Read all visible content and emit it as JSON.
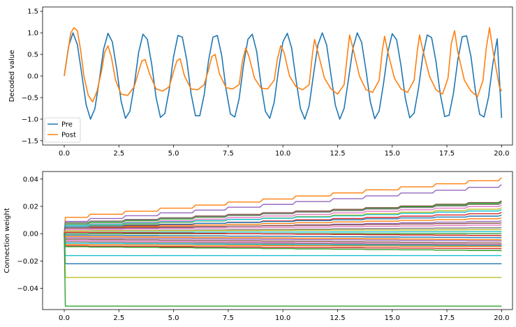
{
  "chart_data": [
    {
      "type": "line",
      "title": "",
      "xlabel": "",
      "ylabel": "Decoded value",
      "xlim": [
        -0.99,
        20.5
      ],
      "ylim": [
        -1.6,
        1.6
      ],
      "xticks": [
        0.0,
        2.5,
        5.0,
        7.5,
        10.0,
        12.5,
        15.0,
        17.5,
        20.0
      ],
      "xtick_labels": [
        "0.0",
        "2.5",
        "5.0",
        "7.5",
        "10.0",
        "12.5",
        "15.0",
        "17.5",
        "20.0"
      ],
      "yticks": [
        -1.5,
        -1.0,
        -0.5,
        0.0,
        0.5,
        1.0,
        1.5
      ],
      "ytick_labels": [
        "−1.5",
        "−1.0",
        "−0.5",
        "0.0",
        "0.5",
        "1.0",
        "1.5"
      ],
      "grid": false,
      "legend_position": "lower-left",
      "series": [
        {
          "name": "Pre",
          "color": "#1f77b4",
          "x": [
            0.0,
            0.2,
            0.4,
            0.6,
            0.8,
            1.0,
            1.2,
            1.4,
            1.6,
            1.8,
            2.0,
            2.2,
            2.4,
            2.6,
            2.8,
            3.0,
            3.2,
            3.4,
            3.6,
            3.8,
            4.0,
            4.2,
            4.4,
            4.6,
            4.8,
            5.0,
            5.2,
            5.4,
            5.6,
            5.8,
            6.0,
            6.2,
            6.4,
            6.6,
            6.8,
            7.0,
            7.2,
            7.4,
            7.6,
            7.8,
            8.0,
            8.2,
            8.4,
            8.6,
            8.8,
            9.0,
            9.2,
            9.4,
            9.6,
            9.8,
            10.0,
            10.2,
            10.4,
            10.6,
            10.8,
            11.0,
            11.2,
            11.4,
            11.6,
            11.8,
            12.0,
            12.2,
            12.4,
            12.6,
            12.8,
            13.0,
            13.2,
            13.4,
            13.6,
            13.8,
            14.0,
            14.2,
            14.4,
            14.6,
            14.8,
            15.0,
            15.2,
            15.4,
            15.6,
            15.8,
            16.0,
            16.2,
            16.4,
            16.6,
            16.8,
            17.0,
            17.2,
            17.4,
            17.6,
            17.8,
            18.0,
            18.2,
            18.4,
            18.6,
            18.8,
            19.0,
            19.2,
            19.4,
            19.6,
            19.8,
            20.0
          ],
          "y": [
            0.0,
            0.69,
            1.0,
            0.73,
            0.05,
            -0.66,
            -1.0,
            -0.76,
            -0.11,
            0.62,
            0.99,
            0.79,
            0.16,
            -0.58,
            -0.98,
            -0.82,
            -0.22,
            0.54,
            0.97,
            0.85,
            0.27,
            -0.5,
            -0.96,
            -0.87,
            -0.32,
            0.45,
            0.94,
            0.9,
            0.38,
            -0.41,
            -0.92,
            -0.92,
            -0.43,
            0.36,
            0.9,
            0.94,
            0.48,
            -0.31,
            -0.88,
            -0.95,
            -0.52,
            0.26,
            0.85,
            0.97,
            0.57,
            -0.2,
            -0.82,
            -0.98,
            -0.61,
            0.15,
            0.79,
            0.99,
            0.65,
            -0.09,
            -0.75,
            -1.0,
            -0.69,
            0.04,
            0.72,
            1.0,
            0.72,
            0.02,
            -0.68,
            -1.0,
            -0.75,
            -0.07,
            0.64,
            1.0,
            0.78,
            0.13,
            -0.6,
            -0.99,
            -0.81,
            -0.18,
            0.56,
            0.98,
            0.84,
            0.24,
            -0.52,
            -0.97,
            -0.86,
            -0.29,
            0.47,
            0.95,
            0.89,
            0.34,
            -0.43,
            -0.94,
            -0.91,
            -0.4,
            0.38,
            0.91,
            0.93,
            0.45,
            -0.33,
            -0.89,
            -0.95,
            -0.5,
            0.28,
            0.86,
            -0.97
          ]
        },
        {
          "name": "Post",
          "color": "#ff7f0e",
          "x": [
            0.0,
            0.15,
            0.3,
            0.45,
            0.6,
            0.75,
            0.9,
            1.1,
            1.3,
            1.5,
            1.7,
            1.85,
            2.0,
            2.15,
            2.35,
            2.6,
            2.9,
            3.2,
            3.4,
            3.55,
            3.7,
            3.9,
            4.2,
            4.5,
            4.8,
            5.0,
            5.15,
            5.3,
            5.5,
            5.8,
            6.1,
            6.4,
            6.6,
            6.75,
            6.9,
            7.1,
            7.4,
            7.7,
            8.0,
            8.15,
            8.3,
            8.45,
            8.7,
            9.0,
            9.3,
            9.6,
            9.75,
            9.9,
            10.05,
            10.3,
            10.6,
            10.9,
            11.2,
            11.35,
            11.45,
            11.6,
            11.9,
            12.2,
            12.5,
            12.8,
            12.95,
            13.05,
            13.2,
            13.5,
            13.8,
            14.1,
            14.4,
            14.55,
            14.65,
            14.8,
            15.1,
            15.4,
            15.7,
            16.0,
            16.15,
            16.25,
            16.4,
            16.7,
            17.0,
            17.3,
            17.55,
            17.7,
            17.85,
            18.0,
            18.3,
            18.6,
            18.9,
            19.15,
            19.3,
            19.45,
            19.6,
            19.9,
            20.0
          ],
          "y": [
            0.0,
            0.5,
            1.0,
            1.12,
            1.05,
            0.6,
            0.0,
            -0.45,
            -0.6,
            -0.35,
            0.1,
            0.55,
            0.7,
            0.45,
            -0.1,
            -0.42,
            -0.45,
            -0.25,
            0.1,
            0.35,
            0.38,
            0.05,
            -0.3,
            -0.35,
            -0.25,
            0.1,
            0.35,
            0.4,
            0.0,
            -0.3,
            -0.32,
            -0.2,
            0.15,
            0.45,
            0.5,
            0.05,
            -0.27,
            -0.3,
            -0.2,
            0.35,
            0.65,
            0.45,
            -0.05,
            -0.28,
            -0.3,
            -0.1,
            0.4,
            0.7,
            0.55,
            0.0,
            -0.25,
            -0.32,
            -0.2,
            0.5,
            0.85,
            0.55,
            -0.05,
            -0.3,
            -0.42,
            -0.2,
            0.5,
            0.95,
            0.65,
            0.0,
            -0.32,
            -0.38,
            -0.1,
            0.6,
            0.92,
            0.55,
            -0.05,
            -0.3,
            -0.38,
            -0.1,
            0.6,
            0.95,
            0.6,
            0.0,
            -0.32,
            -0.42,
            -0.05,
            0.75,
            1.05,
            0.55,
            -0.1,
            -0.35,
            -0.48,
            -0.1,
            0.65,
            1.12,
            0.6,
            -0.25,
            -0.35
          ]
        }
      ]
    },
    {
      "type": "line",
      "title": "",
      "xlabel": "",
      "ylabel": "Connection weight",
      "xlim": [
        -0.99,
        20.5
      ],
      "ylim": [
        -0.0555,
        0.0455
      ],
      "xticks": [
        0.0,
        2.5,
        5.0,
        7.5,
        10.0,
        12.5,
        15.0,
        17.5,
        20.0
      ],
      "xtick_labels": [
        "0.0",
        "2.5",
        "5.0",
        "7.5",
        "10.0",
        "12.5",
        "15.0",
        "17.5",
        "20.0"
      ],
      "yticks": [
        -0.04,
        -0.02,
        0.0,
        0.02,
        0.04
      ],
      "ytick_labels": [
        "−0.04",
        "−0.02",
        "0.00",
        "0.02",
        "0.04"
      ],
      "grid": false,
      "series": [
        {
          "color": "#ff7f0e",
          "start": 0.012,
          "end": 0.041
        },
        {
          "color": "#9467bd",
          "start": 0.009,
          "end": 0.036
        },
        {
          "color": "#8c564b",
          "start": 0.008,
          "end": 0.024
        },
        {
          "color": "#2ca02c",
          "start": 0.007,
          "end": 0.0235
        },
        {
          "color": "#e377c2",
          "start": 0.006,
          "end": 0.021
        },
        {
          "color": "#7f7f7f",
          "start": 0.008,
          "end": 0.0225
        },
        {
          "color": "#bcbd22",
          "start": 0.005,
          "end": 0.019
        },
        {
          "color": "#17becf",
          "start": 0.006,
          "end": 0.0175
        },
        {
          "color": "#d62728",
          "start": 0.004,
          "end": 0.0155
        },
        {
          "color": "#1f77b4",
          "start": 0.005,
          "end": 0.0135
        },
        {
          "color": "#ff7f0e",
          "start": 0.004,
          "end": 0.0115
        },
        {
          "color": "#9467bd",
          "start": 0.003,
          "end": 0.0095
        },
        {
          "color": "#8c564b",
          "start": 0.004,
          "end": 0.008
        },
        {
          "color": "#e377c2",
          "start": 0.003,
          "end": 0.0065
        },
        {
          "color": "#7f7f7f",
          "start": 0.002,
          "end": 0.0045
        },
        {
          "color": "#bcbd22",
          "start": 0.002,
          "end": 0.003
        },
        {
          "color": "#17becf",
          "start": 0.001,
          "end": 0.0015
        },
        {
          "color": "#2ca02c",
          "start": 0.0,
          "end": 0.0
        },
        {
          "color": "#d62728",
          "start": 0.001,
          "end": -0.0015
        },
        {
          "color": "#1f77b4",
          "start": -0.001,
          "end": -0.003
        },
        {
          "color": "#ff7f0e",
          "start": -0.002,
          "end": -0.0045
        },
        {
          "color": "#9467bd",
          "start": -0.003,
          "end": -0.0055
        },
        {
          "color": "#8c564b",
          "start": -0.004,
          "end": -0.007
        },
        {
          "color": "#e377c2",
          "start": -0.005,
          "end": -0.008
        },
        {
          "color": "#7f7f7f",
          "start": -0.006,
          "end": -0.0085
        },
        {
          "color": "#17becf",
          "start": -0.007,
          "end": -0.009
        },
        {
          "color": "#ff7f0e",
          "start": -0.008,
          "end": -0.0095
        },
        {
          "color": "#d62728",
          "start": -0.009,
          "end": -0.011
        },
        {
          "color": "#2ca02c",
          "start": -0.0095,
          "end": -0.0125
        },
        {
          "color": "#17becf",
          "start": -0.016,
          "end": -0.016
        },
        {
          "color": "#1f77b4",
          "start": -0.022,
          "end": -0.022
        },
        {
          "color": "#bcbd22",
          "start": -0.032,
          "end": -0.032
        },
        {
          "color": "#2ca02c",
          "start": -0.053,
          "end": -0.053
        }
      ]
    }
  ]
}
